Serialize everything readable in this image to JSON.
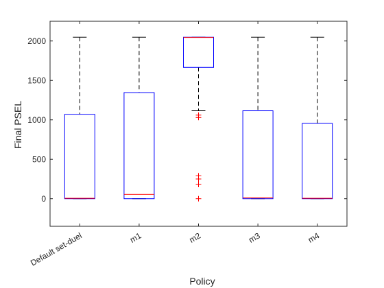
{
  "chart_data": {
    "type": "box",
    "xlabel": "Policy",
    "ylabel": "Final PSEL",
    "ylim": [
      -350,
      2250
    ],
    "yticks": [
      0,
      500,
      1000,
      1500,
      2000
    ],
    "categories": [
      "Default set-duel",
      "m1",
      "m2",
      "m3",
      "m4"
    ],
    "boxes": [
      {
        "category": "Default set-duel",
        "whisker_low": 0,
        "q1": 0,
        "median": 5,
        "q3": 1070,
        "whisker_high": 2048,
        "outliers": []
      },
      {
        "category": "m1",
        "whisker_low": 0,
        "q1": 0,
        "median": 55,
        "q3": 1345,
        "whisker_high": 2048,
        "outliers": []
      },
      {
        "category": "m2",
        "whisker_low": 1115,
        "q1": 1665,
        "median": 2045,
        "q3": 2048,
        "whisker_high": 2048,
        "outliers": [
          1060,
          1030,
          290,
          250,
          180,
          0
        ]
      },
      {
        "category": "m3",
        "whisker_low": 0,
        "q1": 0,
        "median": 10,
        "q3": 1115,
        "whisker_high": 2048,
        "outliers": []
      },
      {
        "category": "m4",
        "whisker_low": 0,
        "q1": 0,
        "median": 5,
        "q3": 955,
        "whisker_high": 2048,
        "outliers": []
      }
    ],
    "grid": false,
    "colors": {
      "box": "#0000ff",
      "median": "#ff0000",
      "whisker": "#000000",
      "outlier": "#ff0000"
    }
  }
}
